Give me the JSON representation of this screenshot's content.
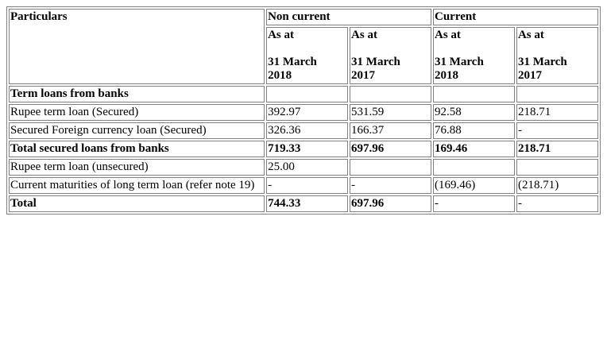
{
  "header": {
    "particulars": "Particulars",
    "non_current": "Non current",
    "current": "Current",
    "columns": [
      {
        "as_at": "As at",
        "date_line1": "31 March",
        "date_line2": "2018"
      },
      {
        "as_at": "As at",
        "date_line1": "31 March",
        "date_line2": "2017"
      },
      {
        "as_at": "As at",
        "date_line1": "31 March",
        "date_line2": "2018"
      },
      {
        "as_at": "As at",
        "date_line1": "31 March",
        "date_line2": "2017"
      }
    ]
  },
  "rows": [
    {
      "label": "Term loans from banks",
      "values": [
        "",
        "",
        "",
        ""
      ],
      "bold": true
    },
    {
      "label": "Rupee term loan (Secured)",
      "values": [
        "392.97",
        "531.59",
        "92.58",
        "218.71"
      ],
      "bold": false
    },
    {
      "label": "Secured Foreign currency loan (Secured)",
      "values": [
        "326.36",
        "166.37",
        "76.88",
        "-"
      ],
      "bold": false
    },
    {
      "label": "Total secured loans from banks",
      "values": [
        "719.33",
        "697.96",
        "169.46",
        "218.71"
      ],
      "bold": true
    },
    {
      "label": "Rupee term loan (unsecured)",
      "values": [
        "25.00",
        "",
        "",
        ""
      ],
      "bold": false
    },
    {
      "label": "Current maturities of long term loan (refer note 19)",
      "values": [
        "-",
        "-",
        "(169.46)",
        "(218.71)"
      ],
      "bold": false
    },
    {
      "label": "Total",
      "values": [
        "744.33",
        "697.96",
        "-",
        "-"
      ],
      "bold": true
    }
  ]
}
